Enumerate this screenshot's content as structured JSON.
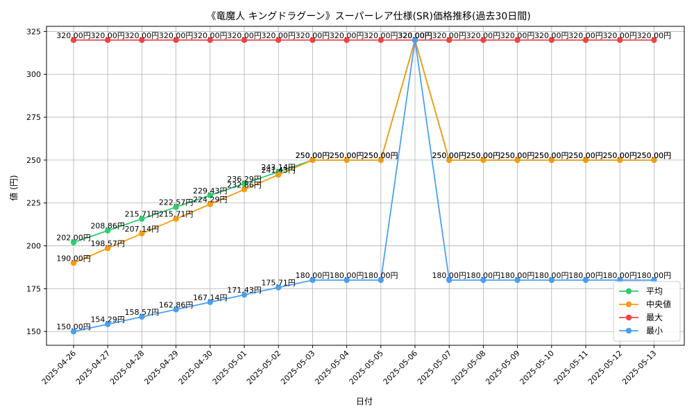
{
  "chart_data": {
    "type": "line",
    "title": "《竜魔人 キングドラグーン》スーパーレア仕様(SR)価格推移(過去30日間)",
    "xlabel": "日付",
    "ylabel": "値 (円)",
    "ylim": [
      142,
      328
    ],
    "yticks": [
      150,
      175,
      200,
      225,
      250,
      275,
      300,
      325
    ],
    "grid": true,
    "legend_position": "bottom-right",
    "categories": [
      "2025-04-26",
      "2025-04-27",
      "2025-04-28",
      "2025-04-29",
      "2025-04-30",
      "2025-05-01",
      "2025-05-02",
      "2025-05-03",
      "2025-05-04",
      "2025-05-05",
      "2025-05-06",
      "2025-05-07",
      "2025-05-08",
      "2025-05-09",
      "2025-05-10",
      "2025-05-11",
      "2025-05-12",
      "2025-05-13"
    ],
    "series": [
      {
        "name": "平均",
        "color": "#2ecc71",
        "values": [
          202.0,
          208.86,
          215.71,
          222.57,
          229.43,
          236.29,
          243.14,
          250.0,
          250.0,
          250.0,
          320.0,
          250.0,
          250.0,
          250.0,
          250.0,
          250.0,
          250.0,
          250.0
        ],
        "labels": [
          "202.00円",
          "208.86円",
          "215.71円",
          "222.57円",
          "229.43円",
          "236.29円",
          "243.14円",
          "250.00円",
          "250.00円",
          "250.00円",
          "320.00円",
          "250.00円",
          "250.00円",
          "250.00円",
          "250.00円",
          "250.00円",
          "250.00円",
          "250.00円"
        ]
      },
      {
        "name": "中央値",
        "color": "#f39c12",
        "values": [
          190.0,
          198.57,
          207.14,
          215.71,
          224.29,
          232.86,
          241.43,
          250.0,
          250.0,
          250.0,
          320.0,
          250.0,
          250.0,
          250.0,
          250.0,
          250.0,
          250.0,
          250.0
        ],
        "labels": [
          "190.00円",
          "198.57円",
          "207.14円",
          "215.71円",
          "224.29円",
          "232.86円",
          "241.43円",
          "250.00円",
          "250.00円",
          "250.00円",
          "320.00円",
          "250.00円",
          "250.00円",
          "250.00円",
          "250.00円",
          "250.00円",
          "250.00円",
          "250.00円"
        ]
      },
      {
        "name": "最大",
        "color": "#ef4444",
        "values": [
          320,
          320,
          320,
          320,
          320,
          320,
          320,
          320,
          320,
          320,
          320,
          320,
          320,
          320,
          320,
          320,
          320,
          320
        ],
        "labels": [
          "320.00円",
          "320.00円",
          "320.00円",
          "320.00円",
          "320.00円",
          "320.00円",
          "320.00円",
          "320.00円",
          "320.00円",
          "320.00円",
          "320.00円",
          "320.00円",
          "320.00円",
          "320.00円",
          "320.00円",
          "320.00円",
          "320.00円",
          "320.00円"
        ]
      },
      {
        "name": "最小",
        "color": "#4a9ff5",
        "values": [
          150.0,
          154.29,
          158.57,
          162.86,
          167.14,
          171.43,
          175.71,
          180.0,
          180.0,
          180.0,
          320.0,
          180.0,
          180.0,
          180.0,
          180.0,
          180.0,
          180.0,
          180.0
        ],
        "labels": [
          "150.00円",
          "154.29円",
          "158.57円",
          "162.86円",
          "167.14円",
          "171.43円",
          "175.71円",
          "180.00円",
          "180.00円",
          "180.00円",
          "320.00円",
          "180.00円",
          "180.00円",
          "180.00円",
          "180.00円",
          "180.00円",
          "180.00円",
          "180.00円"
        ]
      }
    ]
  }
}
